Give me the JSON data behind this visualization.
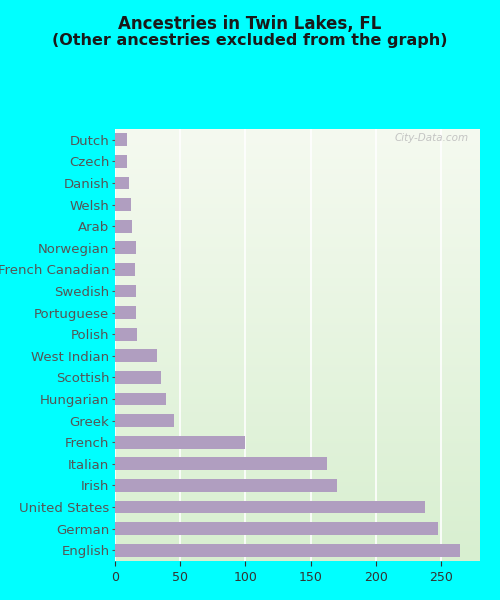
{
  "title_line1": "Ancestries in Twin Lakes, FL",
  "title_line2": "(Other ancestries excluded from the graph)",
  "categories": [
    "English",
    "German",
    "United States",
    "Irish",
    "Italian",
    "French",
    "Greek",
    "Hungarian",
    "Scottish",
    "West Indian",
    "Polish",
    "Portuguese",
    "Swedish",
    "French Canadian",
    "Norwegian",
    "Arab",
    "Welsh",
    "Danish",
    "Czech",
    "Dutch"
  ],
  "values": [
    265,
    248,
    238,
    170,
    163,
    100,
    45,
    39,
    35,
    32,
    17,
    16,
    16,
    15,
    16,
    13,
    12,
    11,
    9,
    9
  ],
  "bar_color": "#b09ec0",
  "background_outer": "#00ffff",
  "background_plot": "#e8f5e0",
  "xlim": [
    0,
    280
  ],
  "xticks": [
    0,
    50,
    100,
    150,
    200,
    250
  ],
  "title_fontsize": 12,
  "label_fontsize": 9.5,
  "tick_fontsize": 9
}
